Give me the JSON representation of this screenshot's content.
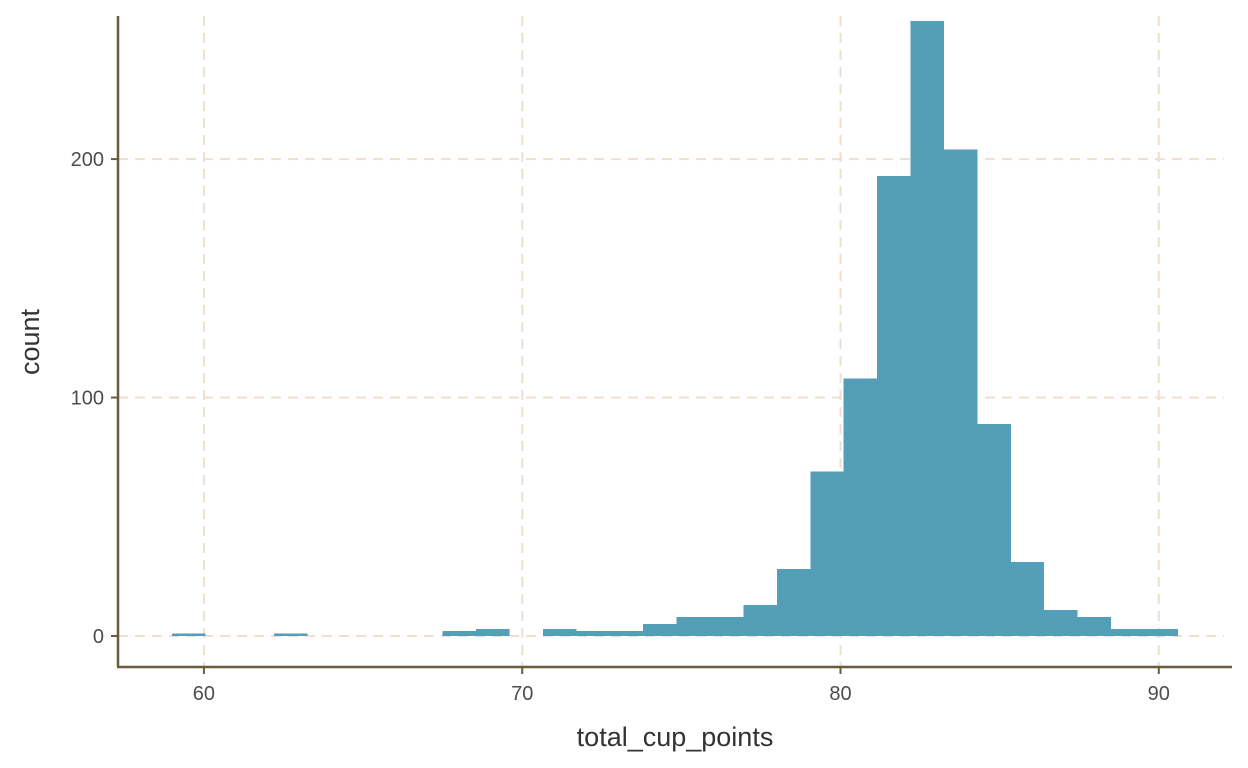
{
  "chart_data": {
    "type": "bar",
    "title": "",
    "xlabel": "total_cup_points",
    "ylabel": "count",
    "xlim": [
      57.3,
      92.3
    ],
    "ylim": [
      -13,
      260
    ],
    "x_ticks": [
      60,
      70,
      80,
      90
    ],
    "y_ticks": [
      0,
      100,
      200
    ],
    "x_tick_labels": [
      "60",
      "70",
      "80",
      "90"
    ],
    "y_tick_labels": [
      "0",
      "100",
      "200"
    ],
    "grid": true,
    "legend": "none",
    "bar_color": "#559eb8",
    "bins": [
      {
        "x0": 59.0,
        "x1": 60.05,
        "count": 1
      },
      {
        "x0": 62.2,
        "x1": 63.25,
        "count": 1
      },
      {
        "x0": 67.5,
        "x1": 68.55,
        "count": 2
      },
      {
        "x0": 68.55,
        "x1": 69.6,
        "count": 3
      },
      {
        "x0": 70.65,
        "x1": 71.7,
        "count": 3
      },
      {
        "x0": 71.7,
        "x1": 72.75,
        "count": 2
      },
      {
        "x0": 72.75,
        "x1": 73.8,
        "count": 2
      },
      {
        "x0": 73.8,
        "x1": 74.85,
        "count": 5
      },
      {
        "x0": 74.85,
        "x1": 75.9,
        "count": 8
      },
      {
        "x0": 75.9,
        "x1": 76.95,
        "count": 8
      },
      {
        "x0": 76.95,
        "x1": 78.0,
        "count": 13
      },
      {
        "x0": 78.0,
        "x1": 79.05,
        "count": 28
      },
      {
        "x0": 79.05,
        "x1": 80.1,
        "count": 69
      },
      {
        "x0": 80.1,
        "x1": 81.15,
        "count": 108
      },
      {
        "x0": 81.15,
        "x1": 82.2,
        "count": 193
      },
      {
        "x0": 82.2,
        "x1": 83.25,
        "count": 258
      },
      {
        "x0": 83.25,
        "x1": 84.3,
        "count": 204
      },
      {
        "x0": 84.3,
        "x1": 85.35,
        "count": 89
      },
      {
        "x0": 85.35,
        "x1": 86.4,
        "count": 31
      },
      {
        "x0": 86.4,
        "x1": 87.45,
        "count": 11
      },
      {
        "x0": 87.45,
        "x1": 88.5,
        "count": 8
      },
      {
        "x0": 88.5,
        "x1": 89.55,
        "count": 3
      },
      {
        "x0": 89.55,
        "x1": 90.6,
        "count": 3
      }
    ]
  }
}
